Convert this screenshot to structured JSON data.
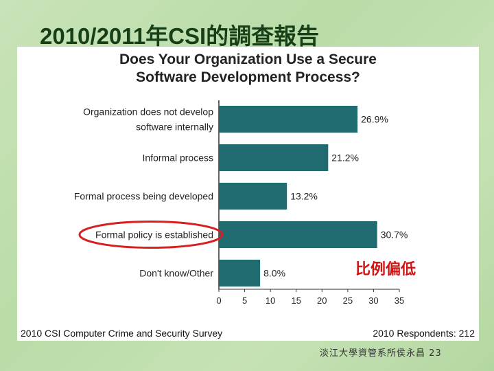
{
  "slide": {
    "title": "2010/2011年CSI的調查報告",
    "annotation": "比例偏低",
    "footer": "淡江大學資管系所侯永昌 23",
    "colors": {
      "bar": "#1f6b70",
      "highlight": "#d81e1e",
      "annotation": "#d01515"
    }
  },
  "chart_data": {
    "type": "bar",
    "orientation": "horizontal",
    "title": "Does Your Organization Use a Secure Software Development Process?",
    "title_lines": [
      "Does Your Organization Use a Secure",
      "Software Development Process?"
    ],
    "categories": [
      [
        "Organization does not develop",
        "software internally"
      ],
      [
        "Informal process"
      ],
      [
        "Formal process being developed"
      ],
      [
        "Formal policy is established"
      ],
      [
        "Don't know/Other"
      ]
    ],
    "values": [
      26.9,
      21.2,
      13.2,
      30.7,
      8.0
    ],
    "value_labels": [
      "26.9%",
      "21.2%",
      "13.2%",
      "30.7%",
      "8.0%"
    ],
    "xlim": [
      0,
      35
    ],
    "xticks": [
      0,
      5,
      10,
      15,
      20,
      25,
      30,
      35
    ],
    "highlighted_index": 3,
    "grid": false,
    "source_left": "2010 CSI Computer Crime and Security Survey",
    "source_right": "2010 Respondents: 212"
  }
}
